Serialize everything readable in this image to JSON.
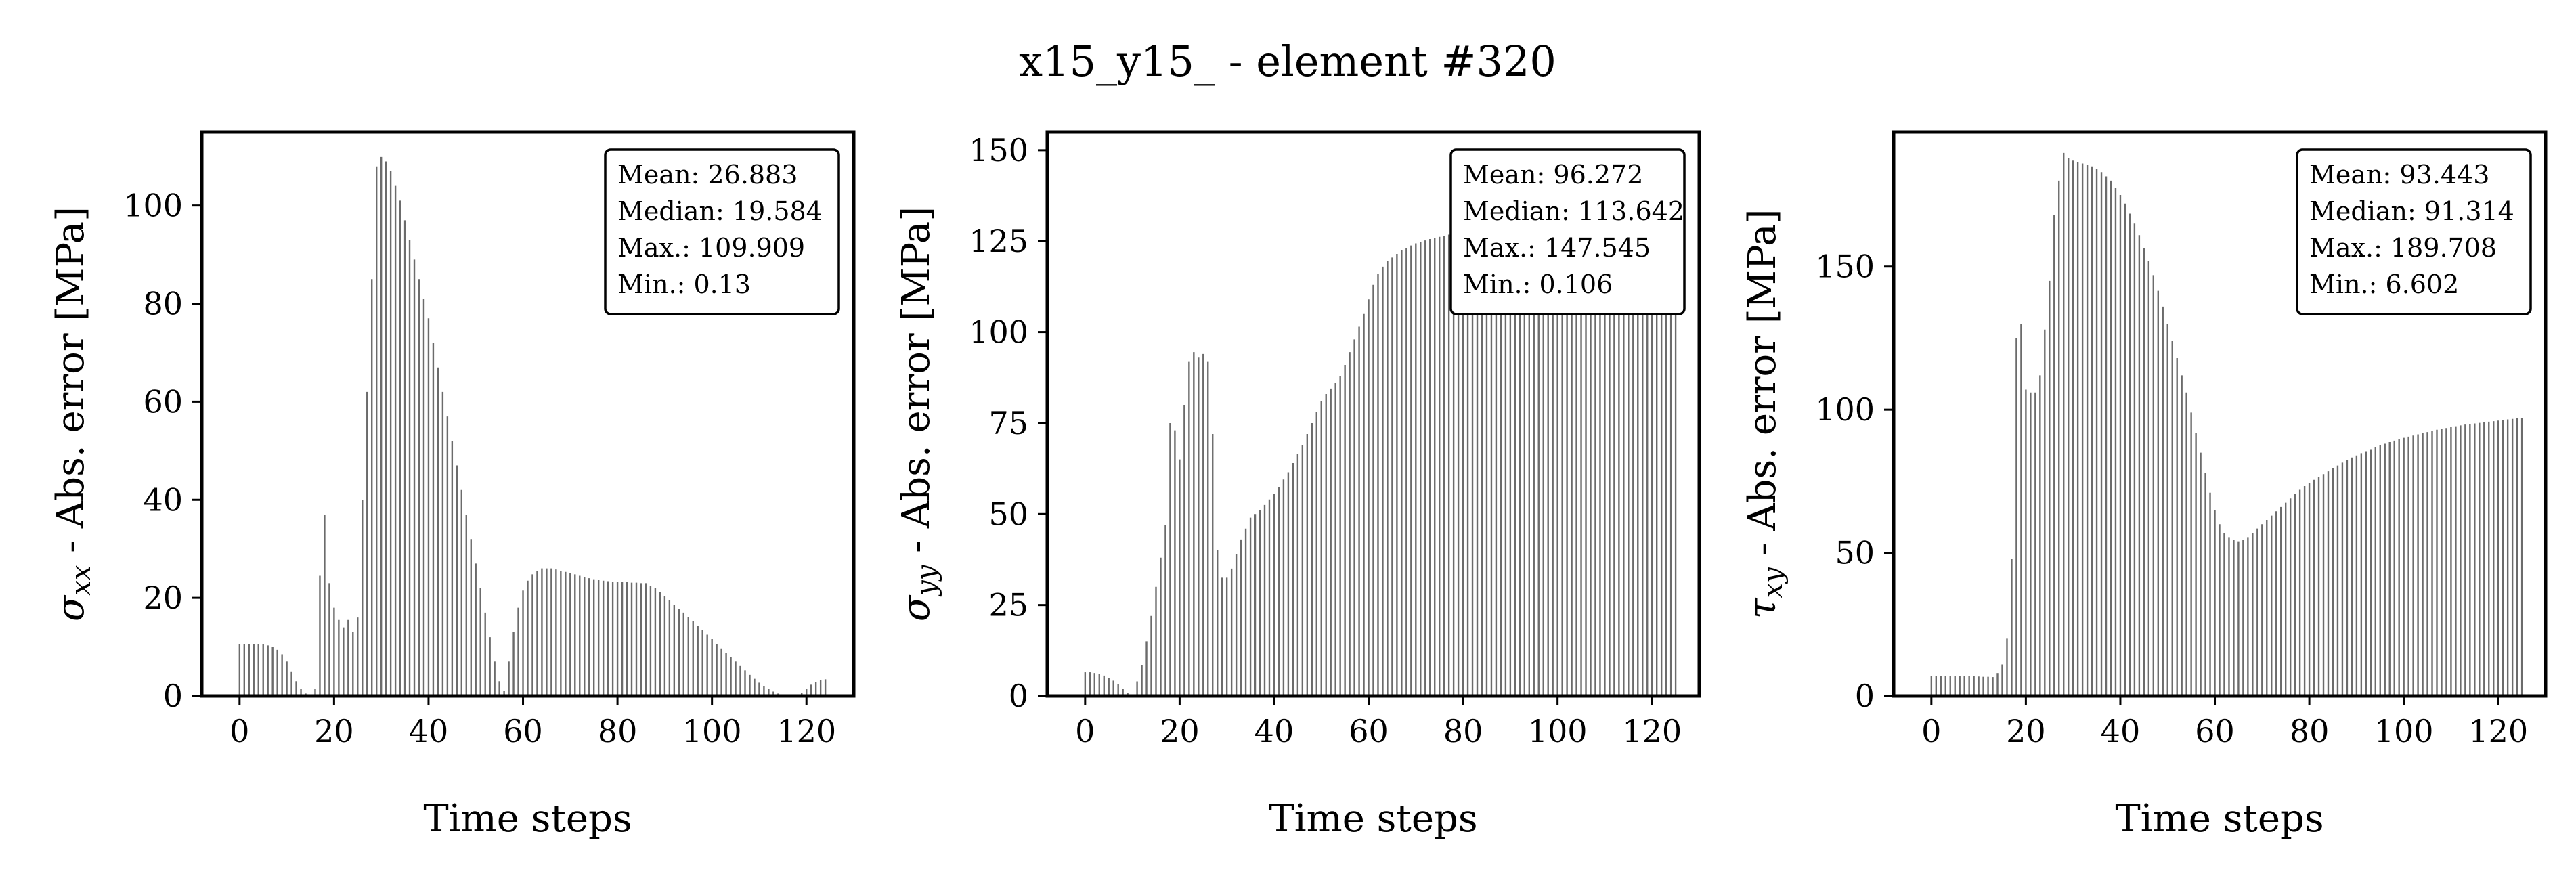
{
  "figure": {
    "title": "x15_y15_ - element #320"
  },
  "chart_data": [
    {
      "type": "bar",
      "ylabel_symbol": "σ",
      "ylabel_sub": "xx",
      "ylabel_text": " - Abs. error [MPa]",
      "xlabel": "Time steps",
      "xlim": [
        -8,
        130
      ],
      "ylim": [
        0,
        115
      ],
      "xticks": [
        0,
        20,
        40,
        60,
        80,
        100,
        120
      ],
      "yticks": [
        0,
        20,
        40,
        60,
        80,
        100
      ],
      "grid": false,
      "stats": [
        "Mean: 26.883",
        "Median: 19.584",
        "Max.: 109.909",
        "Min.: 0.13"
      ],
      "stats_position": "top-right",
      "x_start": 0,
      "x_step": 1,
      "values": [
        10.5,
        10.5,
        10.5,
        10.5,
        10.5,
        10.5,
        10.3,
        10.0,
        9.4,
        8.5,
        7.0,
        5.0,
        3.0,
        1.4,
        0.5,
        0.13,
        1.5,
        24.5,
        37.0,
        23.0,
        18.0,
        15.5,
        14.0,
        15.5,
        13.0,
        16.0,
        40.0,
        62.0,
        85.0,
        108.0,
        109.909,
        109.0,
        107.0,
        104.0,
        101.0,
        97.0,
        93.0,
        89.0,
        85.0,
        81.0,
        77.0,
        72.0,
        67.0,
        62.0,
        57.0,
        52.0,
        47.0,
        42.0,
        37.0,
        32.0,
        27.0,
        22.0,
        17.0,
        12.0,
        7.0,
        3.0,
        1.0,
        7.0,
        13.0,
        18.0,
        21.5,
        23.5,
        24.8,
        25.5,
        26.0,
        26.0,
        26.0,
        25.8,
        25.5,
        25.3,
        25.0,
        24.8,
        24.5,
        24.3,
        24.0,
        23.8,
        23.6,
        23.5,
        23.4,
        23.3,
        23.3,
        23.2,
        23.2,
        23.1,
        23.1,
        23.0,
        23.0,
        22.5,
        22.0,
        21.2,
        20.3,
        19.5,
        18.6,
        17.8,
        17.0,
        16.1,
        15.2,
        14.3,
        13.4,
        12.5,
        11.6,
        10.6,
        9.7,
        8.8,
        7.9,
        7.0,
        6.1,
        5.2,
        4.3,
        3.5,
        2.7,
        2.0,
        1.4,
        0.9,
        0.5,
        0.3,
        0.2,
        0.15,
        0.2,
        0.6,
        1.5,
        2.3,
        2.9,
        3.2,
        3.4
      ]
    },
    {
      "type": "bar",
      "ylabel_symbol": "σ",
      "ylabel_sub": "yy",
      "ylabel_text": " - Abs. error [MPa]",
      "xlabel": "Time steps",
      "xlim": [
        -8,
        130
      ],
      "ylim": [
        0,
        155
      ],
      "xticks": [
        0,
        20,
        40,
        60,
        80,
        100,
        120
      ],
      "yticks": [
        0,
        25,
        50,
        75,
        100,
        125,
        150
      ],
      "grid": false,
      "stats": [
        "Mean: 96.272",
        "Median: 113.642",
        "Max.: 147.545",
        "Min.: 0.106"
      ],
      "stats_position": "top-right",
      "x_start": 0,
      "x_step": 1,
      "values": [
        6.5,
        6.5,
        6.3,
        6.0,
        5.6,
        5.0,
        4.2,
        3.2,
        2.0,
        0.8,
        0.106,
        4.0,
        8.5,
        15.0,
        22.0,
        30.0,
        38.0,
        47.0,
        75.0,
        73.0,
        65.0,
        80.0,
        92.0,
        94.5,
        93.0,
        94.0,
        92.0,
        72.0,
        40.0,
        32.5,
        32.5,
        35.0,
        39.0,
        43.0,
        46.0,
        49.0,
        50.0,
        51.0,
        52.5,
        54.0,
        55.5,
        57.5,
        59.5,
        61.5,
        64.0,
        66.5,
        69.0,
        72.0,
        75.0,
        78.0,
        81.0,
        83.0,
        84.5,
        86.0,
        88.0,
        91.0,
        94.5,
        98.0,
        101.5,
        105.0,
        109.0,
        113.0,
        116.0,
        118.0,
        119.5,
        120.5,
        121.5,
        122.5,
        123.0,
        123.8,
        124.4,
        124.8,
        125.2,
        125.6,
        125.9,
        126.2,
        126.5,
        126.8,
        127.0,
        127.2,
        127.4,
        127.6,
        127.8,
        128.0,
        128.1,
        128.2,
        128.4,
        128.5,
        128.6,
        128.7,
        128.8,
        128.9,
        129.0,
        129.0,
        129.1,
        129.2,
        129.3,
        129.3,
        129.4,
        129.5,
        129.6,
        129.7,
        129.8,
        130.0,
        131.0,
        132.5,
        134.0,
        135.5,
        137.0,
        138.0,
        139.0,
        140.0,
        141.0,
        142.0,
        143.0,
        143.5,
        144.0,
        144.5,
        145.0,
        145.5,
        146.0,
        146.5,
        147.0,
        147.3,
        147.5,
        147.545
      ]
    },
    {
      "type": "bar",
      "ylabel_symbol": "τ",
      "ylabel_sub": "xy",
      "ylabel_text": " - Abs. error [MPa]",
      "xlabel": "Time steps",
      "xlim": [
        -8,
        130
      ],
      "ylim": [
        0,
        197
      ],
      "xticks": [
        0,
        20,
        40,
        60,
        80,
        100,
        120
      ],
      "yticks": [
        0,
        50,
        100,
        150
      ],
      "grid": false,
      "stats": [
        "Mean: 93.443",
        "Median: 91.314",
        "Max.: 189.708",
        "Min.: 6.602"
      ],
      "stats_position": "top-right",
      "x_start": 0,
      "x_step": 1,
      "values": [
        7.0,
        7.0,
        7.0,
        7.0,
        7.0,
        7.0,
        7.0,
        7.0,
        7.0,
        6.9,
        6.8,
        6.7,
        6.7,
        6.602,
        8.0,
        11.0,
        20.0,
        48.0,
        125.0,
        130.0,
        107.0,
        106.0,
        106.0,
        112.0,
        128.0,
        145.0,
        168.0,
        180.0,
        189.708,
        188.0,
        187.0,
        186.5,
        186.0,
        185.5,
        185.0,
        184.0,
        183.0,
        181.5,
        180.0,
        177.5,
        175.0,
        172.0,
        168.5,
        165.0,
        161.0,
        156.5,
        152.0,
        147.0,
        141.5,
        136.0,
        130.0,
        124.0,
        118.0,
        112.0,
        106.0,
        99.0,
        92.0,
        85.0,
        78.0,
        71.0,
        65.0,
        60.0,
        57.0,
        55.5,
        54.5,
        54.0,
        54.5,
        55.5,
        57.0,
        58.5,
        60.0,
        61.5,
        63.0,
        64.5,
        66.0,
        67.5,
        69.0,
        70.5,
        72.0,
        73.3,
        74.5,
        75.5,
        76.5,
        77.5,
        78.5,
        79.5,
        80.5,
        81.5,
        82.5,
        83.3,
        84.0,
        84.8,
        85.5,
        86.2,
        86.9,
        87.5,
        88.1,
        88.7,
        89.2,
        89.7,
        90.2,
        90.6,
        91.0,
        91.4,
        91.8,
        92.2,
        92.6,
        93.0,
        93.3,
        93.6,
        93.9,
        94.2,
        94.5,
        94.8,
        95.0,
        95.2,
        95.4,
        95.6,
        95.8,
        96.0,
        96.2,
        96.4,
        96.6,
        96.8,
        97.0,
        97.1
      ]
    }
  ]
}
